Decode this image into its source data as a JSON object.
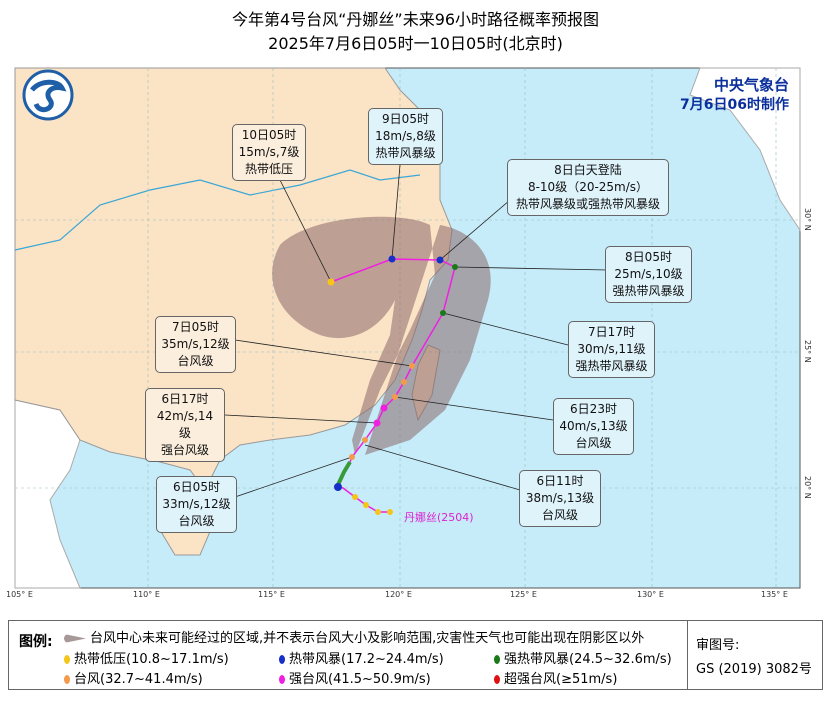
{
  "title": {
    "line1": "今年第4号台风“丹娜丝”未来96小时路径概率预报图",
    "line2": "2025年7月6日05时一10日05时(北京时)"
  },
  "agency": {
    "name": "中央气象台",
    "issued": "7月6日06时制作"
  },
  "typhoon_label": "丹娜丝(2504)",
  "lon_ticks": [
    "105° E",
    "110° E",
    "115° E",
    "120° E",
    "125° E",
    "130° E",
    "135° E"
  ],
  "lat_ticks": [
    "30° N",
    "25° N",
    "20° N"
  ],
  "callouts": [
    {
      "time": "10日05时",
      "wind": "15m/s,7级",
      "level": "热带低压"
    },
    {
      "time": "9日05时",
      "wind": "18m/s,8级",
      "level": "热带风暴级"
    },
    {
      "time": "8日白天登陆",
      "wind": "8-10级（20-25m/s）",
      "level": "热带风暴级或强热带风暴级"
    },
    {
      "time": "8日05时",
      "wind": "25m/s,10级",
      "level": "强热带风暴级"
    },
    {
      "time": "7日17时",
      "wind": "30m/s,11级",
      "level": "强热带风暴级"
    },
    {
      "time": "7日05时",
      "wind": "35m/s,12级",
      "level": "台风级"
    },
    {
      "time": "6日23时",
      "wind": "40m/s,13级",
      "level": "台风级"
    },
    {
      "time": "6日17时",
      "wind": "42m/s,14级",
      "level": "强台风级"
    },
    {
      "time": "6日11时",
      "wind": "38m/s,13级",
      "level": "台风级"
    },
    {
      "time": "6日05时",
      "wind": "33m/s,12级",
      "level": "台风级"
    }
  ],
  "legend": {
    "label": "图例:",
    "cone": "台风中心未来可能经过的区域,并不表示台风大小及影响范围,灾害性天气也可能出现在阴影区以外",
    "items": [
      {
        "text": "热带低压(10.8~17.1m/s)",
        "color": "#f5c518"
      },
      {
        "text": "热带风暴(17.2~24.4m/s)",
        "color": "#1630c8"
      },
      {
        "text": "强热带风暴(24.5~32.6m/s)",
        "color": "#1a7a1a"
      },
      {
        "text": "台风(32.7~41.4m/s)",
        "color": "#f59a4a"
      },
      {
        "text": "强台风(41.5~50.9m/s)",
        "color": "#f020e0"
      },
      {
        "text": "超强台风(≥51m/s)",
        "color": "#e01010"
      }
    ]
  },
  "approval": {
    "label": "审图号:",
    "number": "GS (2019) 3082号"
  }
}
